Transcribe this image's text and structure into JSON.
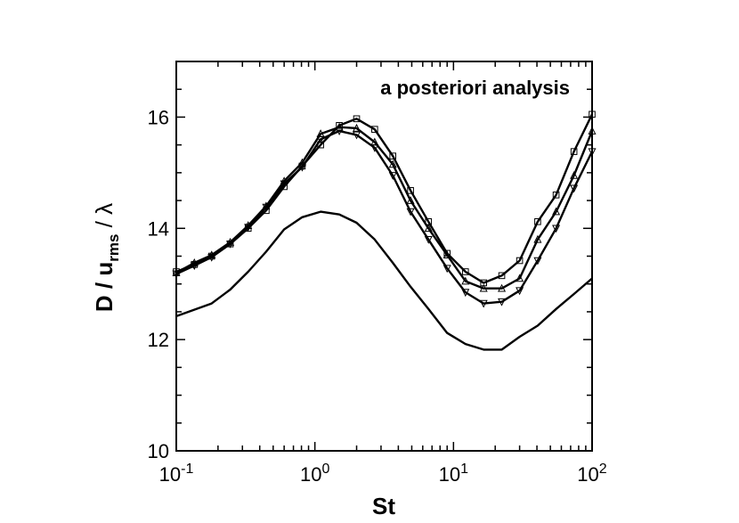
{
  "chart_data": {
    "type": "line",
    "annotation": "a posteriori analysis",
    "xlabel": "St",
    "ylabel": {
      "main": "D / u",
      "subscript": "rms",
      "suffix": " / λ"
    },
    "xscale": "log",
    "xlim": [
      0.1,
      100
    ],
    "ylim": [
      10,
      17
    ],
    "xticks": [
      {
        "base": "10",
        "exp": "-1",
        "value": 0.1
      },
      {
        "base": "10",
        "exp": "0",
        "value": 1
      },
      {
        "base": "10",
        "exp": "1",
        "value": 10
      },
      {
        "base": "10",
        "exp": "2",
        "value": 100
      }
    ],
    "yticks": [
      10,
      12,
      14,
      16
    ],
    "grid": false,
    "series": [
      {
        "marker": "square",
        "x": [
          0.1,
          0.135,
          0.18,
          0.245,
          0.33,
          0.445,
          0.6,
          0.81,
          1.1,
          1.5,
          2.0,
          2.7,
          3.65,
          4.9,
          6.6,
          9.0,
          12.2,
          16.5,
          22.3,
          30,
          40.5,
          55,
          74,
          100
        ],
        "y": [
          13.22,
          13.35,
          13.5,
          13.72,
          14.0,
          14.32,
          14.75,
          15.12,
          15.5,
          15.85,
          15.97,
          15.78,
          15.3,
          14.68,
          14.12,
          13.55,
          13.22,
          13.02,
          13.15,
          13.42,
          14.12,
          14.6,
          15.38,
          16.05
        ]
      },
      {
        "marker": "triangle-up",
        "x": [
          0.1,
          0.135,
          0.18,
          0.245,
          0.33,
          0.445,
          0.6,
          0.81,
          1.1,
          1.5,
          2.0,
          2.7,
          3.65,
          4.9,
          6.6,
          9.0,
          12.2,
          16.5,
          22.3,
          30,
          40.5,
          55,
          74,
          100
        ],
        "y": [
          13.2,
          13.38,
          13.52,
          13.75,
          14.05,
          14.4,
          14.85,
          15.18,
          15.7,
          15.82,
          15.8,
          15.55,
          15.15,
          14.5,
          14.0,
          13.52,
          13.05,
          12.92,
          12.92,
          13.1,
          13.8,
          14.3,
          14.95,
          15.75
        ]
      },
      {
        "marker": "triangle-down",
        "x": [
          0.1,
          0.135,
          0.18,
          0.245,
          0.33,
          0.445,
          0.6,
          0.81,
          1.1,
          1.5,
          2.0,
          2.7,
          3.65,
          4.9,
          6.6,
          9.0,
          12.2,
          16.5,
          22.3,
          30,
          40.5,
          55,
          74,
          100
        ],
        "y": [
          13.18,
          13.33,
          13.48,
          13.72,
          14.02,
          14.38,
          14.8,
          15.1,
          15.6,
          15.75,
          15.68,
          15.45,
          14.95,
          14.3,
          13.8,
          13.28,
          12.85,
          12.65,
          12.68,
          12.88,
          13.42,
          14.0,
          14.72,
          15.38
        ]
      },
      {
        "marker": "none",
        "x": [
          0.1,
          0.18,
          0.245,
          0.33,
          0.445,
          0.6,
          0.81,
          1.1,
          1.5,
          2.0,
          2.7,
          3.65,
          4.9,
          6.6,
          9.0,
          12.2,
          16.5,
          22.3,
          30,
          40.5,
          55,
          74,
          100
        ],
        "y": [
          12.42,
          12.65,
          12.9,
          13.22,
          13.58,
          13.98,
          14.2,
          14.3,
          14.25,
          14.1,
          13.8,
          13.38,
          12.95,
          12.55,
          12.12,
          11.92,
          11.82,
          11.82,
          12.05,
          12.25,
          12.55,
          12.82,
          13.1
        ]
      }
    ]
  }
}
